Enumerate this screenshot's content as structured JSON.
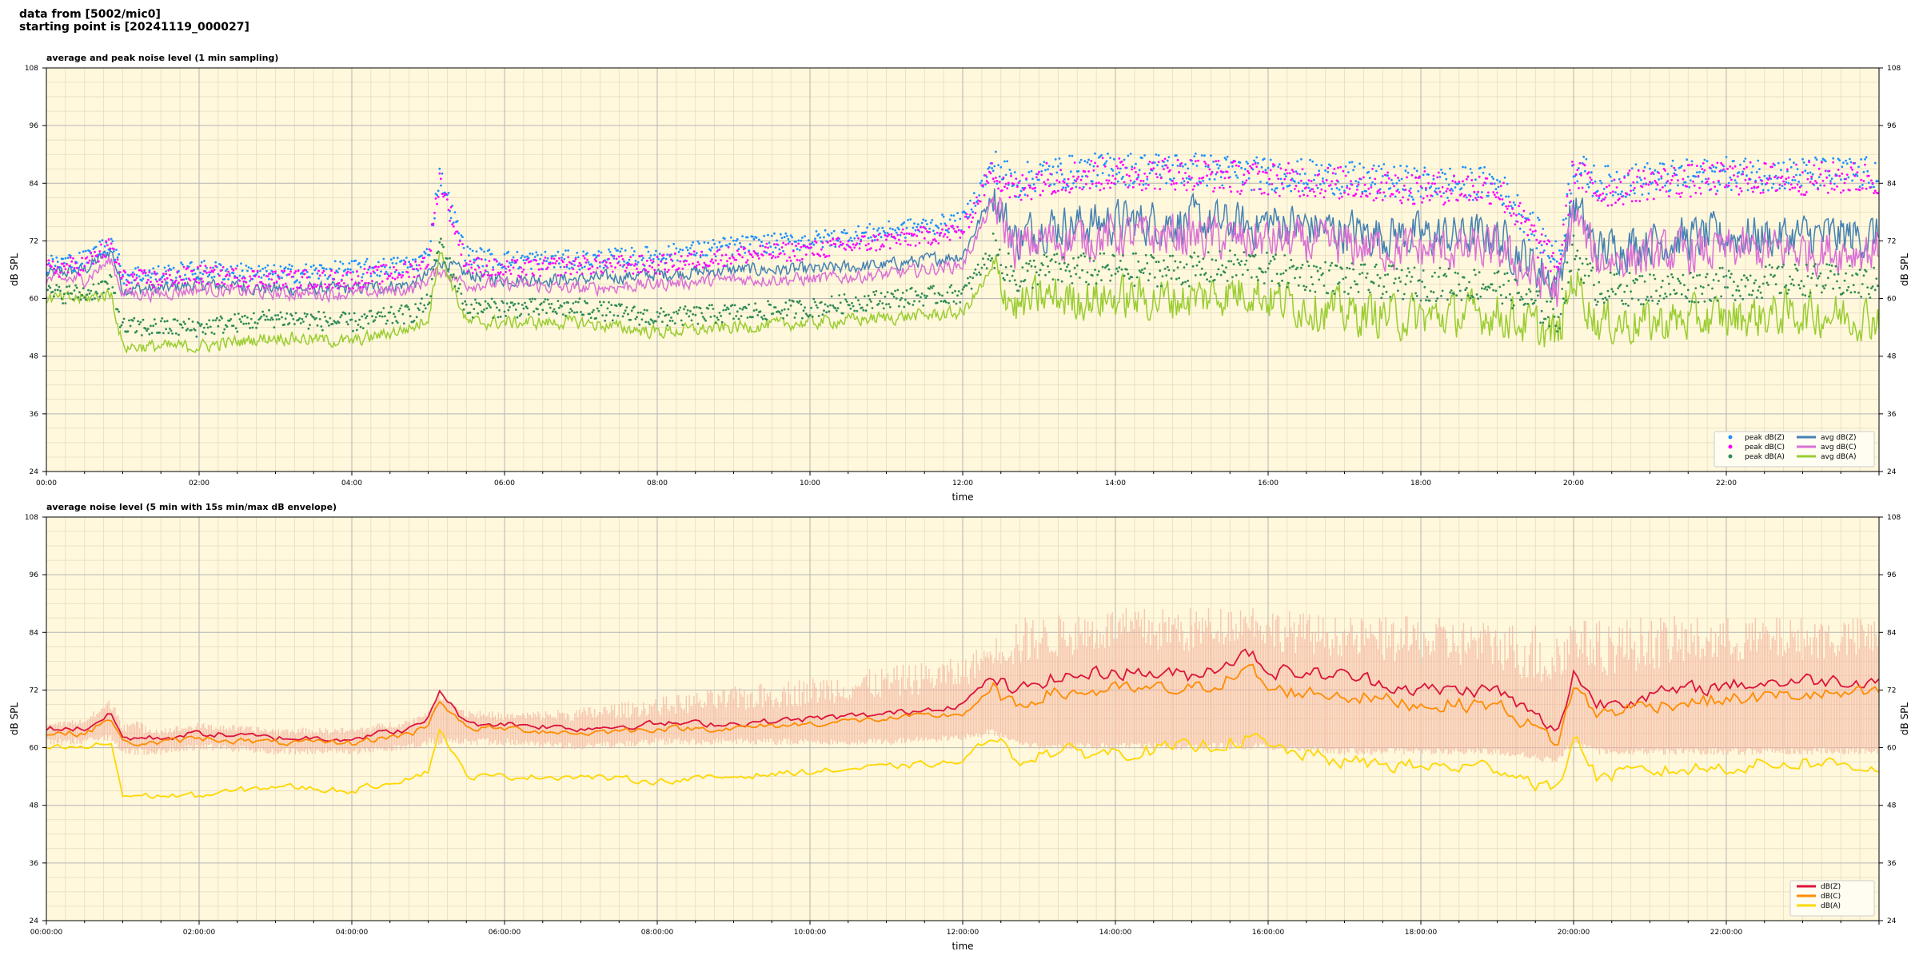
{
  "header": {
    "line1": "data from [5002/mic0]",
    "line2": "starting point is [20241119_000027]"
  },
  "colors": {
    "plot_bg": "#fff8dc",
    "grid_major": "#b4b4b4",
    "grid_minor": "#e6dcc0"
  },
  "chart_data": [
    {
      "type": "line",
      "title": "average and peak noise level (1 min sampling)",
      "xlabel": "time",
      "ylabel": "dB SPL",
      "ylim": [
        24,
        108
      ],
      "y_ticks": [
        "24",
        "36",
        "48",
        "60",
        "72",
        "84",
        "96",
        "108"
      ],
      "x_ticks": [
        "00:00",
        "02:00",
        "04:00",
        "06:00",
        "08:00",
        "10:00",
        "12:00",
        "14:00",
        "16:00",
        "18:00",
        "20:00",
        "22:00"
      ],
      "xlim_hours": [
        0,
        24
      ],
      "grid": true,
      "legend_position": "bottom-right",
      "x": [
        0,
        0.5,
        0.85,
        1.0,
        1.5,
        2.0,
        3.0,
        4.0,
        4.8,
        5.0,
        5.15,
        5.5,
        6.0,
        7.0,
        8.0,
        9.0,
        10.0,
        11.0,
        12.0,
        12.4,
        12.7,
        13.0,
        14.0,
        15.0,
        15.8,
        16.0,
        17.0,
        18.0,
        19.0,
        19.8,
        20.0,
        20.3,
        21.0,
        22.0,
        23.0,
        24.0
      ],
      "series": [
        {
          "name": "avg dB(Z)",
          "color": "#4682b4",
          "kind": "line",
          "values": [
            65,
            66,
            70,
            62,
            62,
            63,
            62,
            62,
            63,
            65,
            68,
            65,
            64,
            64,
            65,
            66,
            66,
            67,
            69,
            82,
            72,
            75,
            76,
            76,
            75,
            76,
            74,
            73,
            73,
            63,
            80,
            70,
            72,
            73,
            73,
            73
          ]
        },
        {
          "name": "avg dB(C)",
          "color": "#da70d6",
          "kind": "line",
          "values": [
            64,
            64,
            68,
            61,
            61,
            62,
            61,
            61,
            62,
            64,
            66,
            63,
            63,
            62,
            63,
            64,
            64,
            65,
            67,
            80,
            70,
            72,
            73,
            73,
            72,
            72,
            71,
            70,
            70,
            61,
            78,
            68,
            69,
            70,
            70,
            70
          ]
        },
        {
          "name": "avg dB(A)",
          "color": "#9acd32",
          "kind": "line",
          "values": [
            60,
            60,
            61,
            50,
            50,
            50,
            52,
            51,
            54,
            56,
            70,
            55,
            55,
            55,
            53,
            54,
            55,
            56,
            57,
            66,
            58,
            60,
            60,
            60,
            62,
            60,
            57,
            56,
            57,
            52,
            65,
            55,
            55,
            56,
            57,
            56
          ]
        },
        {
          "name": "peak dB(Z)",
          "color": "#1e90ff",
          "kind": "scatter",
          "values": [
            67,
            68,
            72,
            65,
            65,
            66,
            65,
            66,
            67,
            69,
            86,
            69,
            68,
            68,
            69,
            71,
            72,
            74,
            76,
            88,
            84,
            86,
            87,
            87,
            86,
            86,
            85,
            84,
            84,
            68,
            88,
            84,
            85,
            86,
            86,
            86
          ]
        },
        {
          "name": "peak dB(C)",
          "color": "#ff00ff",
          "kind": "scatter",
          "values": [
            66,
            67,
            71,
            64,
            64,
            65,
            64,
            64,
            66,
            68,
            85,
            67,
            66,
            67,
            67,
            69,
            70,
            72,
            74,
            87,
            82,
            85,
            86,
            86,
            85,
            85,
            84,
            83,
            83,
            66,
            87,
            82,
            84,
            85,
            85,
            85
          ]
        },
        {
          "name": "peak dB(A)",
          "color": "#2e8b57",
          "kind": "scatter",
          "values": [
            61,
            61,
            63,
            54,
            54,
            54,
            56,
            55,
            57,
            59,
            72,
            58,
            58,
            58,
            56,
            57,
            58,
            60,
            61,
            70,
            64,
            66,
            66,
            66,
            67,
            66,
            64,
            63,
            63,
            56,
            70,
            62,
            62,
            63,
            64,
            63
          ]
        }
      ],
      "legend": [
        {
          "label": "peak dB(Z)",
          "color": "#1e90ff",
          "marker": "dot"
        },
        {
          "label": "peak dB(C)",
          "color": "#ff00ff",
          "marker": "dot"
        },
        {
          "label": "peak dB(A)",
          "color": "#2e8b57",
          "marker": "dot"
        },
        {
          "label": "avg dB(Z)",
          "color": "#4682b4",
          "marker": "line"
        },
        {
          "label": "avg dB(C)",
          "color": "#da70d6",
          "marker": "line"
        },
        {
          "label": "avg dB(A)",
          "color": "#9acd32",
          "marker": "line"
        }
      ]
    },
    {
      "type": "line",
      "title": "average noise level (5 min with 15s min/max dB envelope)",
      "xlabel": "time",
      "ylabel": "dB SPL",
      "ylim": [
        24,
        108
      ],
      "y_ticks": [
        "24",
        "36",
        "48",
        "60",
        "72",
        "84",
        "96",
        "108"
      ],
      "x_ticks": [
        "00:00:00",
        "02:00:00",
        "04:00:00",
        "06:00:00",
        "08:00:00",
        "10:00:00",
        "12:00:00",
        "14:00:00",
        "16:00:00",
        "18:00:00",
        "20:00:00",
        "22:00:00"
      ],
      "xlim_hours": [
        0,
        24
      ],
      "grid": true,
      "legend_position": "bottom-right",
      "x": [
        0,
        0.5,
        0.85,
        1.0,
        1.5,
        2.0,
        3.0,
        4.0,
        4.8,
        5.0,
        5.15,
        5.5,
        6.0,
        7.0,
        8.0,
        9.0,
        10.0,
        11.0,
        12.0,
        12.4,
        12.7,
        13.0,
        14.0,
        15.0,
        15.8,
        16.0,
        17.0,
        18.0,
        19.0,
        19.8,
        20.0,
        20.3,
        21.0,
        22.0,
        23.0,
        24.0
      ],
      "envelope": {
        "color": "#f4b6a0",
        "min": [
          62,
          62,
          63,
          60,
          60,
          61,
          60,
          60,
          61,
          62,
          62,
          62,
          62,
          61,
          62,
          62,
          62,
          62,
          63,
          64,
          62,
          61,
          61,
          61,
          61,
          61,
          60,
          60,
          60,
          58,
          62,
          60,
          60,
          60,
          60,
          60
        ],
        "max": [
          65,
          66,
          70,
          66,
          64,
          65,
          64,
          64,
          66,
          68,
          70,
          68,
          67,
          68,
          70,
          72,
          74,
          76,
          78,
          82,
          86,
          86,
          88,
          88,
          89,
          88,
          86,
          86,
          85,
          84,
          86,
          85,
          86,
          86,
          86,
          86
        ]
      },
      "series": [
        {
          "name": "dB(Z)",
          "color": "#dc143c",
          "kind": "line",
          "values": [
            64,
            64,
            67,
            62,
            62,
            63,
            62,
            62,
            64,
            66,
            72,
            65,
            65,
            64,
            65,
            65,
            66,
            67,
            69,
            75,
            71,
            74,
            76,
            75,
            80,
            76,
            75,
            72,
            72,
            63,
            76,
            69,
            71,
            73,
            74,
            74
          ]
        },
        {
          "name": "dB(C)",
          "color": "#ff8c00",
          "kind": "line",
          "values": [
            63,
            63,
            66,
            61,
            61,
            62,
            61,
            61,
            63,
            65,
            70,
            64,
            64,
            63,
            64,
            64,
            65,
            66,
            67,
            72,
            68,
            71,
            72,
            72,
            76,
            72,
            71,
            69,
            69,
            61,
            73,
            67,
            69,
            70,
            71,
            71
          ]
        },
        {
          "name": "dB(A)",
          "color": "#ffd700",
          "kind": "line",
          "values": [
            60,
            60,
            61,
            50,
            50,
            50,
            52,
            51,
            54,
            55,
            64,
            54,
            54,
            54,
            53,
            54,
            55,
            56,
            57,
            63,
            57,
            59,
            59,
            60,
            62,
            60,
            57,
            56,
            56,
            51,
            63,
            54,
            55,
            56,
            57,
            56
          ]
        }
      ],
      "legend": [
        {
          "label": "dB(Z)",
          "color": "#dc143c",
          "marker": "line"
        },
        {
          "label": "dB(C)",
          "color": "#ff8c00",
          "marker": "line"
        },
        {
          "label": "dB(A)",
          "color": "#ffd700",
          "marker": "line"
        }
      ]
    }
  ]
}
